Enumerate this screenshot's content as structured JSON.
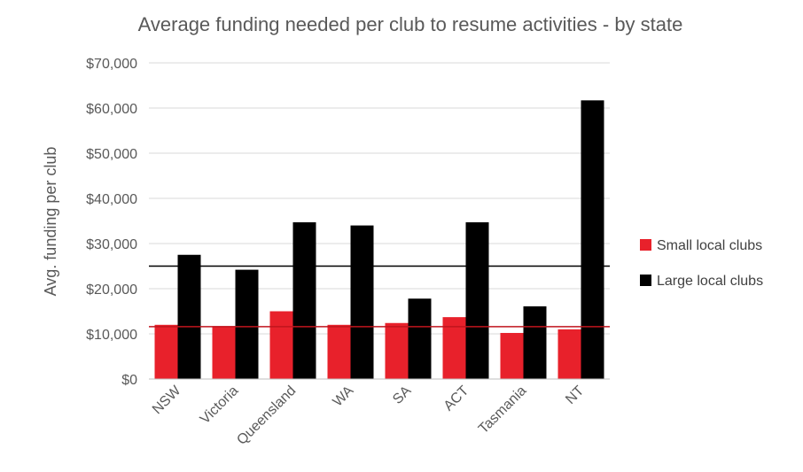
{
  "chart_data": {
    "type": "bar",
    "title": "Average funding needed per club to resume activities - by state",
    "xlabel": "",
    "ylabel": "Avg. funding per club",
    "ylim": [
      0,
      70000
    ],
    "yticks": [
      0,
      10000,
      20000,
      30000,
      40000,
      50000,
      60000,
      70000
    ],
    "ytick_labels": [
      "$0",
      "$10,000",
      "$20,000",
      "$30,000",
      "$40,000",
      "$50,000",
      "$60,000",
      "$70,000"
    ],
    "categories": [
      "NSW",
      "Victoria",
      "Queensland",
      "WA",
      "SA",
      "ACT",
      "Tasmania",
      "NT"
    ],
    "series": [
      {
        "name": "Small local clubs",
        "color": "#e8212b",
        "values": [
          12000,
          11700,
          15000,
          12000,
          12400,
          13700,
          10200,
          11000
        ]
      },
      {
        "name": "Large local clubs",
        "color": "#000000",
        "values": [
          27500,
          24200,
          34700,
          34000,
          17800,
          34700,
          16100,
          61700
        ]
      }
    ],
    "reference_lines": [
      {
        "value": 25000,
        "color": "#000000"
      },
      {
        "value": 11600,
        "color": "#c0151d"
      }
    ],
    "grid": true,
    "legend_position": "right"
  }
}
